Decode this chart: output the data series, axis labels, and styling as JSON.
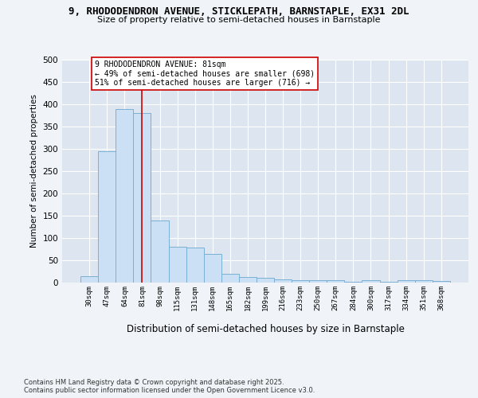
{
  "title1": "9, RHODODENDRON AVENUE, STICKLEPATH, BARNSTAPLE, EX31 2DL",
  "title2": "Size of property relative to semi-detached houses in Barnstaple",
  "xlabel": "Distribution of semi-detached houses by size in Barnstaple",
  "ylabel": "Number of semi-detached properties",
  "categories": [
    "30sqm",
    "47sqm",
    "64sqm",
    "81sqm",
    "98sqm",
    "115sqm",
    "131sqm",
    "148sqm",
    "165sqm",
    "182sqm",
    "199sqm",
    "216sqm",
    "233sqm",
    "250sqm",
    "267sqm",
    "284sqm",
    "300sqm",
    "317sqm",
    "334sqm",
    "351sqm",
    "368sqm"
  ],
  "values": [
    14,
    295,
    390,
    380,
    140,
    80,
    78,
    65,
    20,
    12,
    10,
    7,
    5,
    5,
    6,
    2,
    5,
    2,
    5,
    5,
    3
  ],
  "bar_color": "#cce0f5",
  "bar_edge_color": "#7ab0d4",
  "bg_color": "#dde6f0",
  "grid_color": "#ffffff",
  "vline_x": 3,
  "vline_color": "#cc0000",
  "annotation_text": "9 RHODODENDRON AVENUE: 81sqm\n← 49% of semi-detached houses are smaller (698)\n51% of semi-detached houses are larger (716) →",
  "annotation_box_color": "#ffffff",
  "annotation_box_edge": "#cc0000",
  "footnote": "Contains HM Land Registry data © Crown copyright and database right 2025.\nContains public sector information licensed under the Open Government Licence v3.0.",
  "ylim": [
    0,
    500
  ],
  "yticks": [
    0,
    50,
    100,
    150,
    200,
    250,
    300,
    350,
    400,
    450,
    500
  ],
  "fig_bg": "#f0f4f8"
}
